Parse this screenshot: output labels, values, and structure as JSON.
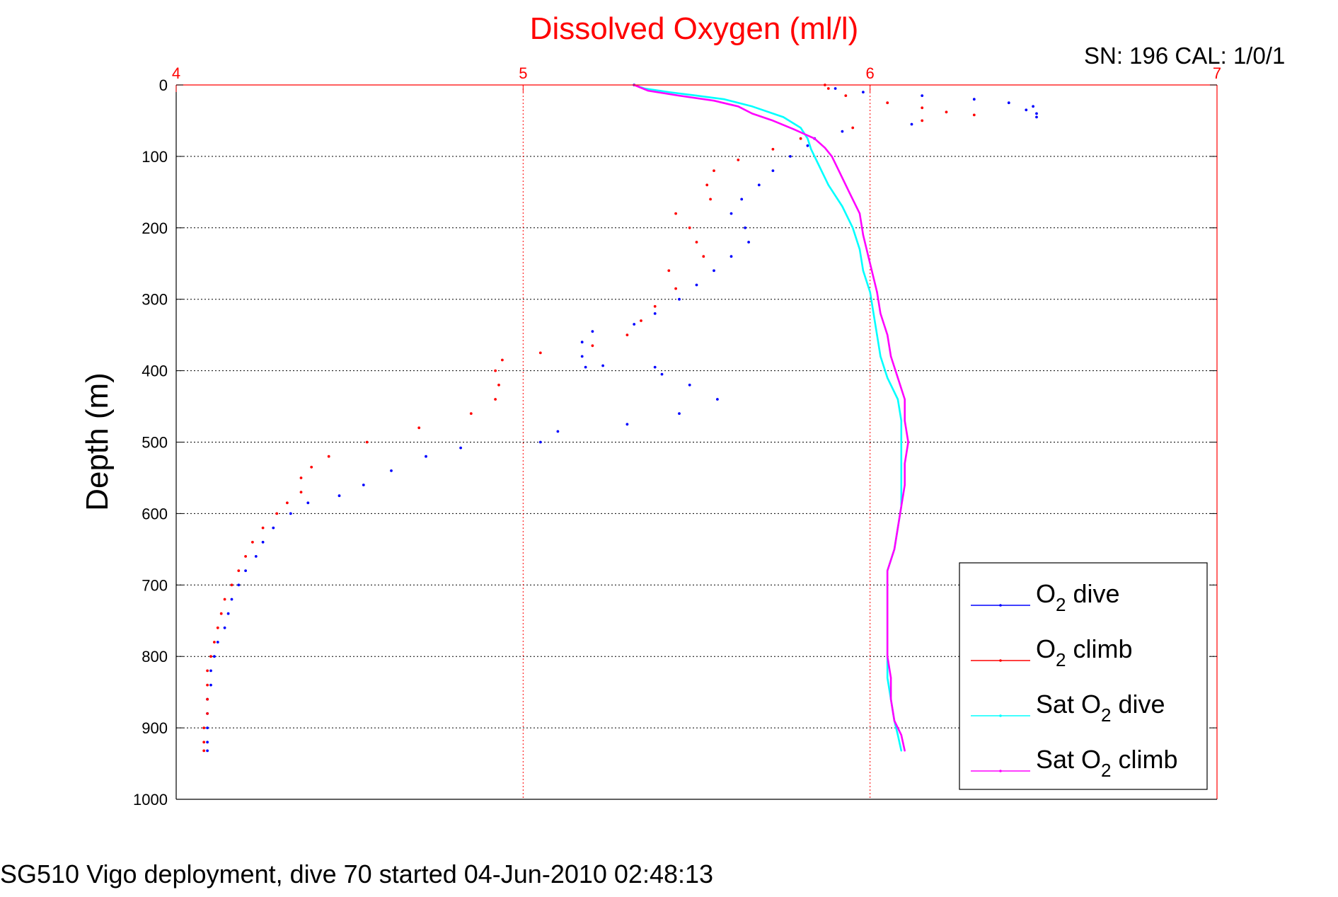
{
  "chart_data": {
    "type": "scatter",
    "title": "Dissolved Oxygen (ml/l)",
    "top_right_note": "SN: 196  CAL: 1/0/1",
    "footer": "SG510 Vigo deployment, dive 70 started 04-Jun-2010 02:48:13",
    "xlabel": "",
    "ylabel": "Depth (m)",
    "xlim": [
      4,
      7
    ],
    "ylim": [
      0,
      1000
    ],
    "y_reversed": true,
    "x_axis_position": "top",
    "xticks": [
      4,
      5,
      6,
      7
    ],
    "yticks": [
      0,
      100,
      200,
      300,
      400,
      500,
      600,
      700,
      800,
      900,
      1000
    ],
    "grid": true,
    "legend_position": "bottom-right",
    "colors": {
      "axis_top": "#ff0000",
      "title": "#ff0000",
      "axis_left": "#000000"
    },
    "series": [
      {
        "name": "O2 dive",
        "legend_base": "O",
        "legend_sub": "2",
        "legend_tail": " dive",
        "color": "#0000ff",
        "style": "dots",
        "points": [
          [
            5.32,
            0
          ],
          [
            5.9,
            5
          ],
          [
            5.98,
            10
          ],
          [
            6.15,
            15
          ],
          [
            6.3,
            20
          ],
          [
            6.4,
            25
          ],
          [
            6.47,
            30
          ],
          [
            6.45,
            35
          ],
          [
            6.48,
            40
          ],
          [
            6.48,
            45
          ],
          [
            6.12,
            55
          ],
          [
            5.92,
            65
          ],
          [
            5.84,
            75
          ],
          [
            5.82,
            85
          ],
          [
            5.77,
            100
          ],
          [
            5.72,
            120
          ],
          [
            5.68,
            140
          ],
          [
            5.63,
            160
          ],
          [
            5.6,
            180
          ],
          [
            5.64,
            200
          ],
          [
            5.65,
            220
          ],
          [
            5.6,
            240
          ],
          [
            5.55,
            260
          ],
          [
            5.5,
            280
          ],
          [
            5.45,
            300
          ],
          [
            5.38,
            320
          ],
          [
            5.32,
            335
          ],
          [
            5.2,
            345
          ],
          [
            5.17,
            360
          ],
          [
            5.17,
            380
          ],
          [
            5.18,
            395
          ],
          [
            5.23,
            393
          ],
          [
            5.38,
            395
          ],
          [
            5.4,
            405
          ],
          [
            5.48,
            420
          ],
          [
            5.56,
            440
          ],
          [
            5.45,
            460
          ],
          [
            5.3,
            475
          ],
          [
            5.1,
            485
          ],
          [
            5.05,
            500
          ],
          [
            4.82,
            508
          ],
          [
            4.72,
            520
          ],
          [
            4.62,
            540
          ],
          [
            4.54,
            560
          ],
          [
            4.47,
            575
          ],
          [
            4.38,
            585
          ],
          [
            4.33,
            600
          ],
          [
            4.28,
            620
          ],
          [
            4.25,
            640
          ],
          [
            4.23,
            660
          ],
          [
            4.2,
            680
          ],
          [
            4.18,
            700
          ],
          [
            4.16,
            720
          ],
          [
            4.15,
            740
          ],
          [
            4.14,
            760
          ],
          [
            4.12,
            780
          ],
          [
            4.11,
            800
          ],
          [
            4.1,
            820
          ],
          [
            4.1,
            840
          ],
          [
            4.09,
            860
          ],
          [
            4.09,
            880
          ],
          [
            4.09,
            900
          ],
          [
            4.09,
            920
          ],
          [
            4.09,
            932
          ]
        ]
      },
      {
        "name": "O2 climb",
        "legend_base": "O",
        "legend_sub": "2",
        "legend_tail": " climb",
        "color": "#ff0000",
        "style": "dots",
        "points": [
          [
            5.87,
            0
          ],
          [
            5.88,
            5
          ],
          [
            5.93,
            15
          ],
          [
            6.05,
            25
          ],
          [
            6.15,
            32
          ],
          [
            6.22,
            38
          ],
          [
            6.3,
            42
          ],
          [
            6.15,
            50
          ],
          [
            5.95,
            60
          ],
          [
            5.8,
            75
          ],
          [
            5.72,
            90
          ],
          [
            5.62,
            105
          ],
          [
            5.55,
            120
          ],
          [
            5.53,
            140
          ],
          [
            5.54,
            160
          ],
          [
            5.44,
            180
          ],
          [
            5.48,
            200
          ],
          [
            5.5,
            220
          ],
          [
            5.52,
            240
          ],
          [
            5.42,
            260
          ],
          [
            5.44,
            285
          ],
          [
            5.38,
            310
          ],
          [
            5.34,
            330
          ],
          [
            5.3,
            350
          ],
          [
            5.2,
            365
          ],
          [
            5.05,
            375
          ],
          [
            4.94,
            385
          ],
          [
            4.92,
            400
          ],
          [
            4.93,
            420
          ],
          [
            4.92,
            440
          ],
          [
            4.85,
            460
          ],
          [
            4.7,
            480
          ],
          [
            4.55,
            500
          ],
          [
            4.44,
            520
          ],
          [
            4.39,
            535
          ],
          [
            4.36,
            550
          ],
          [
            4.36,
            570
          ],
          [
            4.32,
            585
          ],
          [
            4.29,
            600
          ],
          [
            4.25,
            620
          ],
          [
            4.22,
            640
          ],
          [
            4.2,
            660
          ],
          [
            4.18,
            680
          ],
          [
            4.16,
            700
          ],
          [
            4.14,
            720
          ],
          [
            4.13,
            740
          ],
          [
            4.12,
            760
          ],
          [
            4.11,
            780
          ],
          [
            4.1,
            800
          ],
          [
            4.09,
            820
          ],
          [
            4.09,
            840
          ],
          [
            4.09,
            860
          ],
          [
            4.09,
            880
          ],
          [
            4.08,
            900
          ],
          [
            4.08,
            920
          ],
          [
            4.08,
            932
          ]
        ]
      },
      {
        "name": "Sat O2 dive",
        "legend_base": "Sat O",
        "legend_sub": "2",
        "legend_tail": " dive",
        "color": "#00ffff",
        "style": "line",
        "points": [
          [
            5.32,
            0
          ],
          [
            5.35,
            5
          ],
          [
            5.42,
            10
          ],
          [
            5.5,
            15
          ],
          [
            5.58,
            20
          ],
          [
            5.66,
            30
          ],
          [
            5.75,
            45
          ],
          [
            5.8,
            60
          ],
          [
            5.82,
            75
          ],
          [
            5.83,
            90
          ],
          [
            5.85,
            110
          ],
          [
            5.88,
            140
          ],
          [
            5.92,
            170
          ],
          [
            5.95,
            200
          ],
          [
            5.97,
            230
          ],
          [
            5.98,
            260
          ],
          [
            6.0,
            290
          ],
          [
            6.01,
            320
          ],
          [
            6.02,
            350
          ],
          [
            6.03,
            380
          ],
          [
            6.05,
            410
          ],
          [
            6.08,
            440
          ],
          [
            6.09,
            470
          ],
          [
            6.09,
            500
          ],
          [
            6.09,
            530
          ],
          [
            6.09,
            560
          ],
          [
            6.09,
            590
          ],
          [
            6.08,
            620
          ],
          [
            6.07,
            650
          ],
          [
            6.05,
            680
          ],
          [
            6.05,
            710
          ],
          [
            6.05,
            740
          ],
          [
            6.05,
            770
          ],
          [
            6.05,
            800
          ],
          [
            6.05,
            830
          ],
          [
            6.06,
            860
          ],
          [
            6.07,
            890
          ],
          [
            6.08,
            910
          ],
          [
            6.09,
            932
          ]
        ]
      },
      {
        "name": "Sat O2 climb",
        "legend_base": "Sat O",
        "legend_sub": "2",
        "legend_tail": " climb",
        "color": "#ff00ff",
        "style": "line",
        "points": [
          [
            5.32,
            0
          ],
          [
            5.36,
            8
          ],
          [
            5.45,
            15
          ],
          [
            5.55,
            22
          ],
          [
            5.62,
            30
          ],
          [
            5.66,
            40
          ],
          [
            5.72,
            50
          ],
          [
            5.78,
            62
          ],
          [
            5.84,
            75
          ],
          [
            5.87,
            88
          ],
          [
            5.89,
            100
          ],
          [
            5.91,
            120
          ],
          [
            5.94,
            150
          ],
          [
            5.97,
            180
          ],
          [
            5.98,
            210
          ],
          [
            6.0,
            250
          ],
          [
            6.02,
            290
          ],
          [
            6.03,
            320
          ],
          [
            6.05,
            350
          ],
          [
            6.06,
            380
          ],
          [
            6.08,
            410
          ],
          [
            6.1,
            440
          ],
          [
            6.1,
            470
          ],
          [
            6.11,
            500
          ],
          [
            6.1,
            530
          ],
          [
            6.1,
            560
          ],
          [
            6.09,
            590
          ],
          [
            6.08,
            620
          ],
          [
            6.07,
            650
          ],
          [
            6.05,
            680
          ],
          [
            6.05,
            710
          ],
          [
            6.05,
            740
          ],
          [
            6.05,
            770
          ],
          [
            6.05,
            800
          ],
          [
            6.06,
            830
          ],
          [
            6.06,
            860
          ],
          [
            6.07,
            890
          ],
          [
            6.09,
            910
          ],
          [
            6.1,
            932
          ]
        ]
      }
    ]
  }
}
